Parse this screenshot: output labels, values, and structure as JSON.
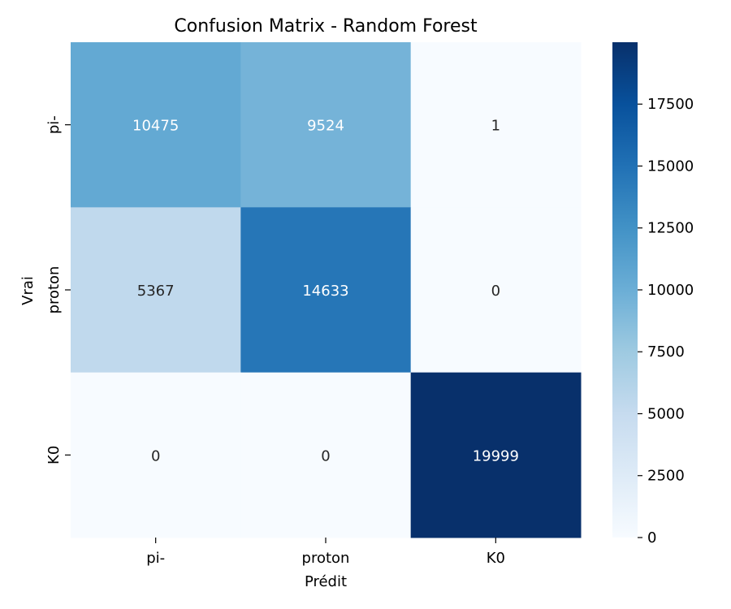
{
  "chart_data": {
    "type": "heatmap",
    "title": "Confusion Matrix - Random Forest",
    "xlabel": "Prédit",
    "ylabel": "Vrai",
    "x_categories": [
      "pi-",
      "proton",
      "K0"
    ],
    "y_categories": [
      "pi-",
      "proton",
      "K0"
    ],
    "values": [
      [
        10475,
        9524,
        1
      ],
      [
        5367,
        14633,
        0
      ],
      [
        0,
        0,
        19999
      ]
    ],
    "colormap": "Blues",
    "colorbar": {
      "range": [
        0,
        19999
      ],
      "ticks": [
        0,
        2500,
        5000,
        7500,
        10000,
        12500,
        15000,
        17500
      ],
      "tick_labels": [
        "0",
        "2500",
        "5000",
        "7500",
        "10000",
        "12500",
        "15000",
        "17500"
      ]
    },
    "grid": false,
    "legend": "colorbar-right"
  }
}
